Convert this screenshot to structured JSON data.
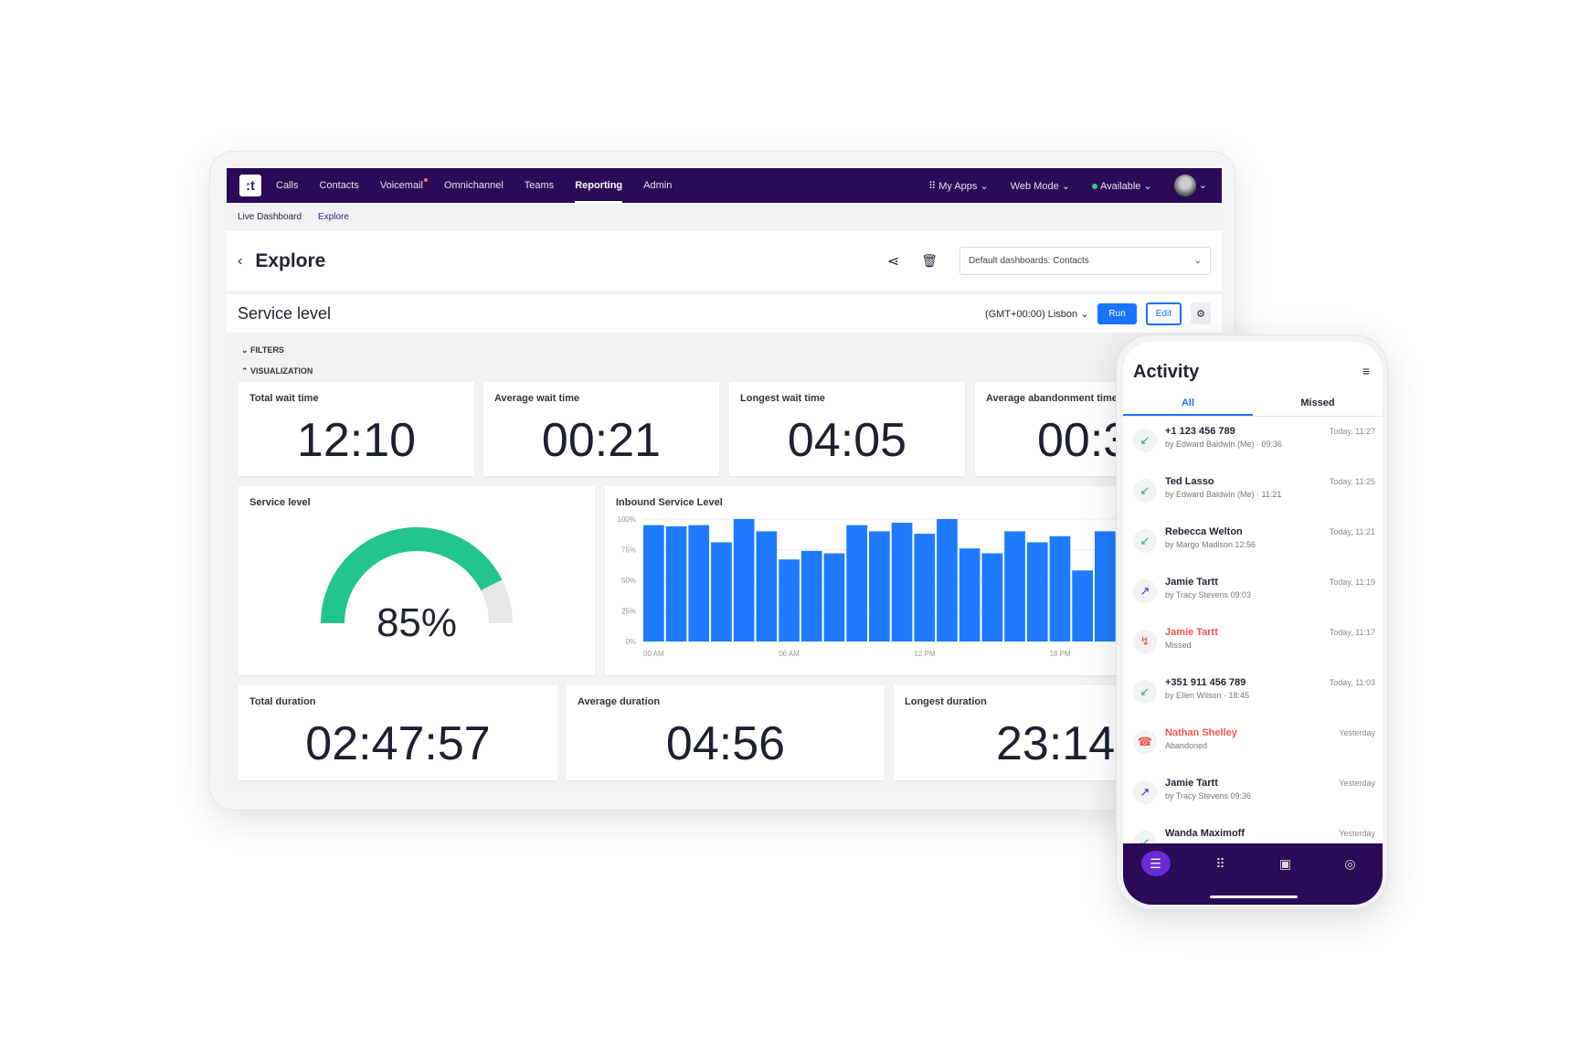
{
  "nav": {
    "logo": ":t",
    "items": [
      {
        "label": "Calls"
      },
      {
        "label": "Contacts"
      },
      {
        "label": "Voicemail"
      },
      {
        "label": "Omnichannel"
      },
      {
        "label": "Teams"
      },
      {
        "label": "Reporting",
        "active": true
      },
      {
        "label": "Admin"
      }
    ],
    "my_apps": "My Apps",
    "web_mode": "Web Mode",
    "status": "Available"
  },
  "subnav": {
    "items": [
      "Live Dashboard",
      "Explore"
    ]
  },
  "header": {
    "title": "Explore",
    "dashboard_select": "Default dashboards: Contacts"
  },
  "report": {
    "title": "Service level",
    "timezone": "(GMT+00:00) Lisbon",
    "run": "Run",
    "edit": "Edit",
    "filters": "FILTERS",
    "visualization": "VISUALIZATION"
  },
  "kpis": [
    {
      "label": "Total wait time",
      "value": "12:10"
    },
    {
      "label": "Average wait time",
      "value": "00:21"
    },
    {
      "label": "Longest wait time",
      "value": "04:05"
    },
    {
      "label": "Average abandonment time",
      "value": "00:3"
    }
  ],
  "gauge": {
    "label": "Service level",
    "value_text": "85%",
    "value": 85,
    "colors": {
      "fill": "#22c58b",
      "track": "#e8e8ea"
    }
  },
  "durations": [
    {
      "label": "Total duration",
      "value": "02:47:57"
    },
    {
      "label": "Average duration",
      "value": "04:56"
    },
    {
      "label": "Longest duration",
      "value": "23:14"
    }
  ],
  "chart_data": {
    "type": "bar",
    "title": "Inbound Service Level",
    "y_ticks": [
      "100%",
      "75%",
      "50%",
      "25%",
      "0%"
    ],
    "ylim": [
      0,
      100
    ],
    "x_ticks": [
      "00 AM",
      "06 AM",
      "12 PM",
      "18 PM"
    ],
    "values": [
      95,
      94,
      95,
      81,
      100,
      90,
      67,
      74,
      72,
      95,
      90,
      97,
      88,
      100,
      76,
      72,
      90,
      81,
      86,
      58,
      90
    ],
    "color": "#1e7bff",
    "grid": true
  },
  "activity": {
    "title": "Activity",
    "tabs": [
      "All",
      "Missed"
    ],
    "items": [
      {
        "name": "+1 123 456 789",
        "sub": "by Edward Baldwin (Me) · 09:36",
        "time": "Today, 11:27",
        "type": "incoming"
      },
      {
        "name": "Ted Lasso",
        "sub": "by Edward Baldwin (Me) · 11:21",
        "time": "Today, 11:25",
        "type": "incoming"
      },
      {
        "name": "Rebecca Welton",
        "sub": "by Margo Madison   12:56",
        "time": "Today, 11:21",
        "type": "incoming"
      },
      {
        "name": "Jamie Tartt",
        "sub": "by Tracy Stevens   09:03",
        "time": "Today, 11:19",
        "type": "outgoing"
      },
      {
        "name": "Jamie Tartt",
        "sub": "Missed",
        "time": "Today, 11:17",
        "type": "missed"
      },
      {
        "name": "+351 911 456 789",
        "sub": "by Ellen Wilson · 18:45",
        "time": "Today, 11:03",
        "type": "incoming"
      },
      {
        "name": "Nathan Shelley",
        "sub": "Abandoned",
        "time": "Yesterday",
        "type": "abandoned"
      },
      {
        "name": "Jamie Tartt",
        "sub": "by Tracy Stevens   09:36",
        "time": "Yesterday",
        "type": "outgoing"
      },
      {
        "name": "Wanda Maximoff",
        "sub": "",
        "time": "Yesterday",
        "type": "incoming"
      }
    ]
  }
}
